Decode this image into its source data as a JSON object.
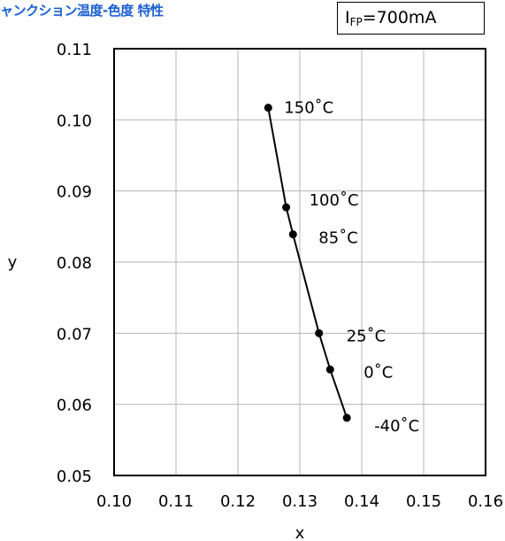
{
  "chart_data": {
    "type": "line",
    "title": "ャンクション温度-色度 特性",
    "condition": {
      "symbol": "I",
      "subscript": "FP",
      "value": "=700mA"
    },
    "xlabel": "x",
    "ylabel": "y",
    "xlim": [
      0.1,
      0.16
    ],
    "ylim": [
      0.05,
      0.11
    ],
    "xticks": [
      "0.10",
      "0.11",
      "0.12",
      "0.13",
      "0.14",
      "0.15",
      "0.16"
    ],
    "yticks": [
      "0.05",
      "0.06",
      "0.07",
      "0.08",
      "0.09",
      "0.10",
      "0.11"
    ],
    "grid": true,
    "series": [
      {
        "points": [
          {
            "x": 0.1249,
            "y": 0.1017,
            "label": "150˚C"
          },
          {
            "x": 0.1278,
            "y": 0.0877,
            "label": "100˚C"
          },
          {
            "x": 0.1289,
            "y": 0.0839,
            "label": "85˚C"
          },
          {
            "x": 0.1331,
            "y": 0.07,
            "label": "25˚C"
          },
          {
            "x": 0.1349,
            "y": 0.0649,
            "label": "0˚C"
          },
          {
            "x": 0.1376,
            "y": 0.0581,
            "label": "-40˚C"
          }
        ]
      }
    ]
  }
}
